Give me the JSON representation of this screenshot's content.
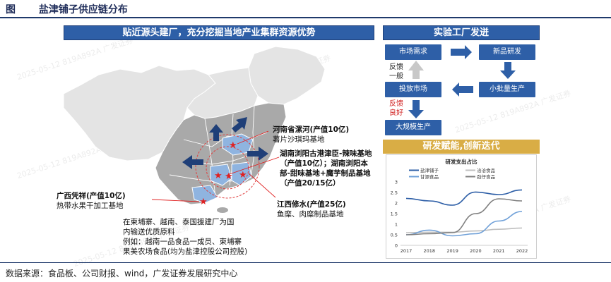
{
  "figure": {
    "label": "图",
    "title": "盐津铺子供应链分布"
  },
  "left_banner": "贴近源头建厂，充分挖掘当地产业集群资源优势",
  "right_banner": "实验工厂发迸",
  "rd_banner": "研发赋能,创新迭代",
  "flow": {
    "market_demand": "市场需求",
    "new_product_rd": "新品研发",
    "small_batch": "小批量生产",
    "launch_market": "投放市场",
    "mass_production": "大规模生产",
    "feedback_normal_1": "反馈",
    "feedback_normal_2": "一般",
    "feedback_good_1": "反馈",
    "feedback_good_2": "良好"
  },
  "annotations": {
    "henan_title": "河南省漯河(产值10亿)",
    "henan_desc": "薯片沙琪玛基地",
    "hunan_l1": "湖南浏阳古港津臣-辣味基地",
    "hunan_l2": "（产值10亿）；湖南浏阳本",
    "hunan_l3": "部-甜味基地+魔芋制品基地",
    "hunan_l4": "（产值20/15亿）",
    "jiangxi_title": "江西修水(产值25亿)",
    "jiangxi_desc": "鱼糜、肉糜制品基地",
    "guangxi_title": "广西凭祥(产值10亿)",
    "guangxi_desc": "热带水果干加工基地",
    "sea_l1": "在柬埔寨、越南、泰国援建厂为国",
    "sea_l2": "内输送优质原料",
    "sea_l3": "例如：越南一品食品一成员、柬埔寨",
    "sea_l4": "果美农场食品(均为盐津控股公司控股)"
  },
  "source": "数据来源：食品板、公司财报、wind，广发证券发展研究中心",
  "watermark": "2025-05-12 819A892A 广发证券",
  "chart_data": {
    "type": "line",
    "title": "研发支出占比",
    "x": [
      "2017",
      "2018",
      "2019",
      "2020",
      "2021",
      "2022"
    ],
    "ylim": [
      0,
      3
    ],
    "yticks": [
      "0",
      "0.5",
      "1",
      "1.5",
      "2",
      "2.5",
      "3"
    ],
    "grid": false,
    "legend_position": "top",
    "series": [
      {
        "name": "盐津铺子",
        "color": "#2e5fa7",
        "values": [
          2.22,
          2.1,
          1.9,
          2.52,
          2.4,
          2.62
        ]
      },
      {
        "name": "洽洽食品",
        "color": "#bfbfbf",
        "values": [
          0.6,
          0.62,
          0.62,
          0.68,
          0.76,
          0.82
        ]
      },
      {
        "name": "甘源食品",
        "color": "#6fa0d8",
        "values": [
          0.5,
          0.72,
          0.45,
          0.55,
          1.15,
          1.6
        ]
      },
      {
        "name": "劲仔食品",
        "color": "#7f7f7f",
        "values": [
          0.5,
          0.55,
          0.6,
          1.5,
          2.2,
          2.1
        ]
      }
    ]
  }
}
